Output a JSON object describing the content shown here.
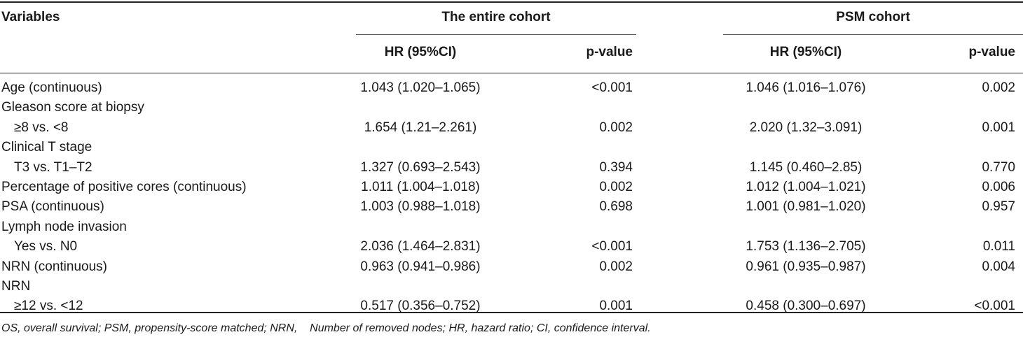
{
  "header": {
    "variables": "Variables",
    "group1": "The entire cohort",
    "group2": "PSM cohort",
    "hr_label": "HR (95%CI)",
    "p_label": "p-value"
  },
  "rows": [
    {
      "variable": "Age (continuous)",
      "indent": false,
      "hr1": "1.043 (1.020–1.065)",
      "p1": "<0.001",
      "hr2": "1.046 (1.016–1.076)",
      "p2": "0.002"
    },
    {
      "variable": "Gleason score at biopsy",
      "indent": false,
      "hr1": "",
      "p1": "",
      "hr2": "",
      "p2": ""
    },
    {
      "variable": "≥8 vs. <8",
      "indent": true,
      "hr1": "1.654 (1.21–2.261)",
      "p1": "0.002",
      "hr2": "2.020 (1.32–3.091)",
      "p2": "0.001"
    },
    {
      "variable": "Clinical T stage",
      "indent": false,
      "hr1": "",
      "p1": "",
      "hr2": "",
      "p2": ""
    },
    {
      "variable": "T3 vs. T1–T2",
      "indent": true,
      "hr1": "1.327 (0.693–2.543)",
      "p1": "0.394",
      "hr2": "1.145 (0.460–2.85)",
      "p2": "0.770"
    },
    {
      "variable": "Percentage of positive cores (continuous)",
      "indent": false,
      "hr1": "1.011 (1.004–1.018)",
      "p1": "0.002",
      "hr2": "1.012 (1.004–1.021)",
      "p2": "0.006"
    },
    {
      "variable": "PSA (continuous)",
      "indent": false,
      "hr1": "1.003 (0.988–1.018)",
      "p1": "0.698",
      "hr2": "1.001 (0.981–1.020)",
      "p2": "0.957"
    },
    {
      "variable": "Lymph node invasion",
      "indent": false,
      "hr1": "",
      "p1": "",
      "hr2": "",
      "p2": ""
    },
    {
      "variable": "Yes vs. N0",
      "indent": true,
      "hr1": "2.036 (1.464–2.831)",
      "p1": "<0.001",
      "hr2": "1.753 (1.136–2.705)",
      "p2": "0.011"
    },
    {
      "variable": "NRN (continuous)",
      "indent": false,
      "hr1": "0.963 (0.941–0.986)",
      "p1": "0.002",
      "hr2": "0.961 (0.935–0.987)",
      "p2": "0.004"
    },
    {
      "variable": "NRN",
      "indent": false,
      "hr1": "",
      "p1": "",
      "hr2": "",
      "p2": ""
    },
    {
      "variable": "≥12 vs. <12",
      "indent": true,
      "hr1": "0.517 (0.356–0.752)",
      "p1": "0.001",
      "hr2": "0.458 (0.300–0.697)",
      "p2": "<0.001"
    }
  ],
  "footnote": "OS, overall survival; PSM, propensity-score matched; NRN,    Number of removed nodes; HR, hazard ratio; CI, confidence interval."
}
